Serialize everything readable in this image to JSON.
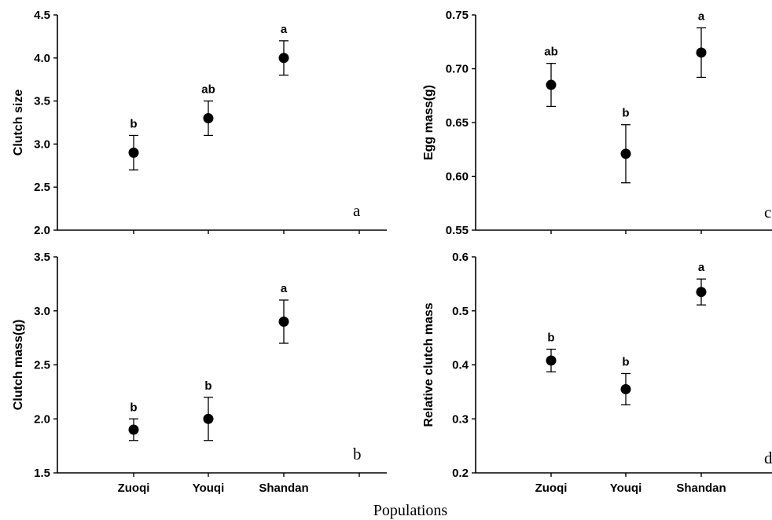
{
  "figure": {
    "xlabel": "Populations"
  },
  "chart_data": [
    {
      "type": "scatter",
      "panel_label": "a",
      "categories": [
        "Zuoqi",
        "Youqi",
        "Shandan"
      ],
      "show_category_labels": false,
      "values": [
        2.9,
        3.3,
        4.0
      ],
      "errors": [
        0.2,
        0.2,
        0.2
      ],
      "significance": [
        "b",
        "ab",
        "a"
      ],
      "ylabel": "Clutch size",
      "ylim": [
        2.0,
        4.5
      ],
      "yticks": [
        2.0,
        2.5,
        3.0,
        3.5,
        4.0,
        4.5
      ],
      "ytick_labels": [
        "2.0",
        "2.5",
        "3.0",
        "3.5",
        "4.0",
        "4.5"
      ]
    },
    {
      "type": "scatter",
      "panel_label": "b",
      "categories": [
        "Zuoqi",
        "Youqi",
        "Shandan"
      ],
      "show_category_labels": true,
      "values": [
        1.9,
        2.0,
        2.9
      ],
      "errors": [
        0.1,
        0.2,
        0.2
      ],
      "significance": [
        "b",
        "b",
        "a"
      ],
      "ylabel": "Clutch mass(g)",
      "ylim": [
        1.5,
        3.5
      ],
      "yticks": [
        1.5,
        2.0,
        2.5,
        3.0,
        3.5
      ],
      "ytick_labels": [
        "1.5",
        "2.0",
        "2.5",
        "3.0",
        "3.5"
      ]
    },
    {
      "type": "scatter",
      "panel_label": "c",
      "categories": [
        "Zuoqi",
        "Youqi",
        "Shandan"
      ],
      "show_category_labels": false,
      "values": [
        0.685,
        0.621,
        0.715
      ],
      "errors": [
        0.02,
        0.027,
        0.023
      ],
      "significance": [
        "ab",
        "b",
        "a"
      ],
      "ylabel": "Egg mass(g)",
      "ylim": [
        0.55,
        0.75
      ],
      "yticks": [
        0.55,
        0.6,
        0.65,
        0.7,
        0.75
      ],
      "ytick_labels": [
        "0.55",
        "0.60",
        "0.65",
        "0.70",
        "0.75"
      ]
    },
    {
      "type": "scatter",
      "panel_label": "d",
      "categories": [
        "Zuoqi",
        "Youqi",
        "Shandan"
      ],
      "show_category_labels": true,
      "values": [
        0.408,
        0.355,
        0.535
      ],
      "errors": [
        0.021,
        0.029,
        0.024
      ],
      "significance": [
        "b",
        "b",
        "a"
      ],
      "ylabel": "Relative clutch mass",
      "ylim": [
        0.2,
        0.6
      ],
      "yticks": [
        0.2,
        0.3,
        0.4,
        0.5,
        0.6
      ],
      "ytick_labels": [
        "0.2",
        "0.3",
        "0.4",
        "0.5",
        "0.6"
      ]
    }
  ]
}
